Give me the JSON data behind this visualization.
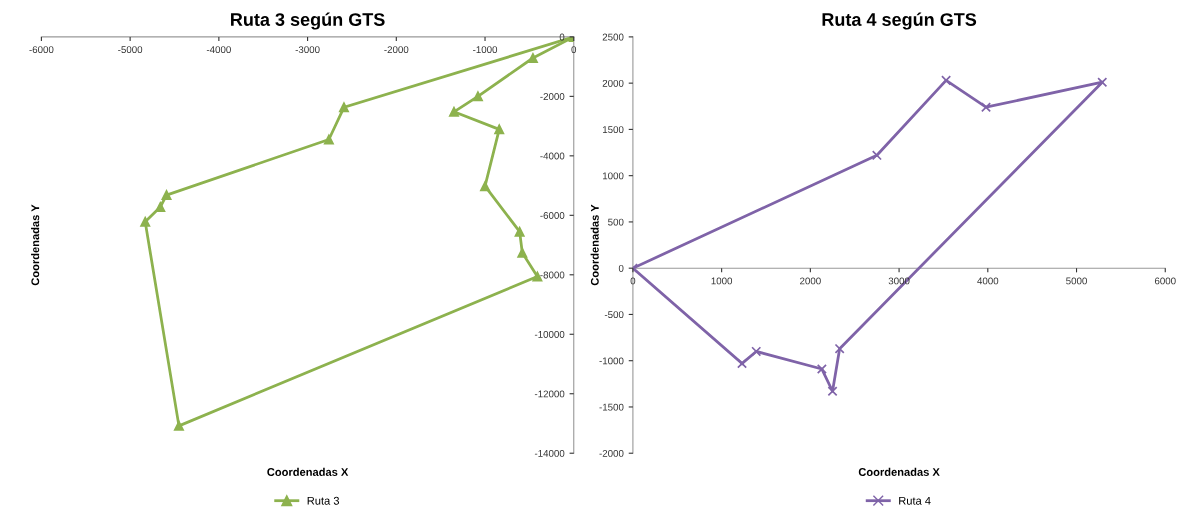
{
  "chart_data": [
    {
      "type": "line",
      "title": "Ruta 3 según GTS",
      "xlabel": "Coordenadas X",
      "ylabel": "Coordenadas Y",
      "legend": "bottom",
      "marker": "triangle",
      "grid": false,
      "xlim": [
        -6000,
        0
      ],
      "xticks": [
        -6000,
        -5000,
        -4000,
        -3000,
        -2000,
        -1000,
        0
      ],
      "ylim": [
        -14000,
        0
      ],
      "yticks": [
        -14000,
        -12000,
        -10000,
        -8000,
        -6000,
        -4000,
        -2000,
        0
      ],
      "series": [
        {
          "name": "Ruta 3",
          "color": "#8db24e",
          "x": [
            0,
            -460,
            -1080,
            -1350,
            -840,
            -1000,
            -610,
            -580,
            -410,
            -4450,
            -4830,
            -4660,
            -4590,
            -2760,
            -2590
          ],
          "values": [
            0,
            -710,
            -2000,
            -2520,
            -3110,
            -5020,
            -6550,
            -7260,
            -8060,
            -13080,
            -6220,
            -5720,
            -5320,
            -3450,
            -2370
          ]
        },
        {
          "color": "#8db24e",
          "marker": "none",
          "x": [
            -2590,
            0
          ],
          "values": [
            -2370,
            0
          ]
        }
      ]
    },
    {
      "type": "line",
      "title": "Ruta 4 según GTS",
      "xlabel": "Coordenadas X",
      "ylabel": "Coordenadas Y",
      "legend": "bottom",
      "marker": "cross",
      "grid": false,
      "xlim": [
        0,
        6000
      ],
      "xticks": [
        0,
        1000,
        2000,
        3000,
        4000,
        5000,
        6000
      ],
      "ylim": [
        -2000,
        2500
      ],
      "yticks": [
        -2000,
        -1500,
        -1000,
        -500,
        0,
        500,
        1000,
        1500,
        2000,
        2500
      ],
      "series": [
        {
          "name": "Ruta 4",
          "color": "#7f63a8",
          "x": [
            0,
            2750,
            3530,
            3980,
            5290,
            2330,
            2250,
            2130,
            1390,
            1230
          ],
          "values": [
            0,
            1220,
            2030,
            1740,
            2010,
            -870,
            -1330,
            -1090,
            -900,
            -1030
          ]
        },
        {
          "color": "#7f63a8",
          "marker": "none",
          "x": [
            1230,
            0
          ],
          "values": [
            -1030,
            0
          ]
        }
      ]
    }
  ]
}
